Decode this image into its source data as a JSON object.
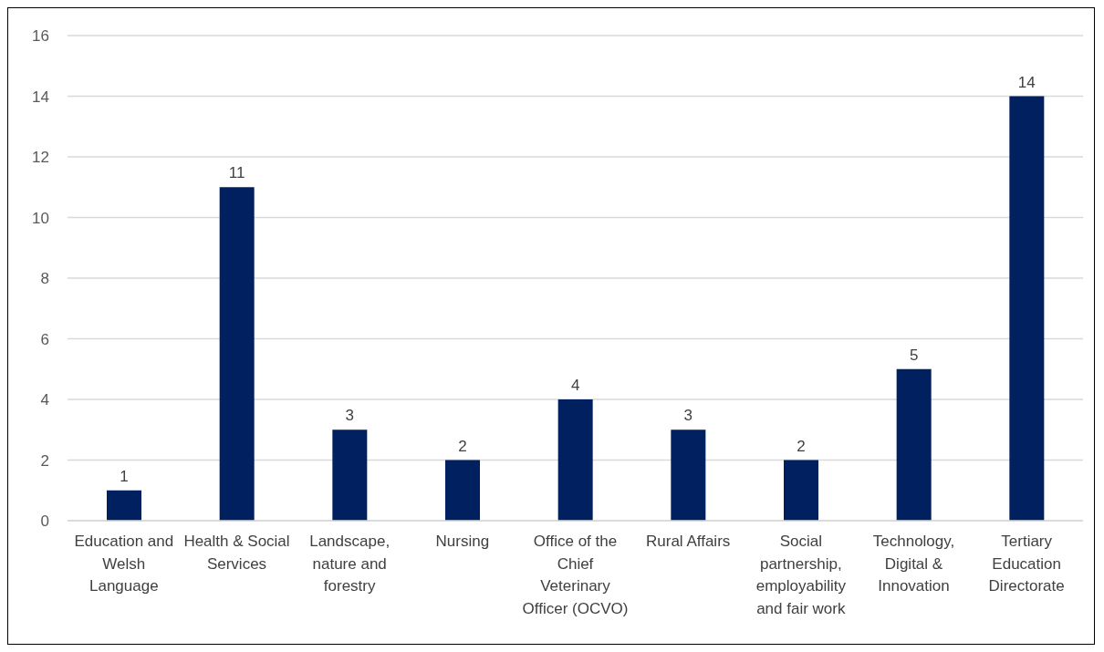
{
  "chart_data": {
    "type": "bar",
    "categories": [
      "Education and Welsh Language",
      "Health & Social Services",
      "Landscape, nature and forestry",
      "Nursing",
      "Office of the Chief Veterinary Officer (OCVO)",
      "Rural Affairs",
      "Social partnership, employability and fair work",
      "Technology, Digital & Innovation",
      "Tertiary Education Directorate"
    ],
    "values": [
      1,
      11,
      3,
      2,
      4,
      3,
      2,
      5,
      14
    ],
    "color": "#002060",
    "ylim": [
      0,
      16
    ],
    "yticks": [
      0,
      2,
      4,
      6,
      8,
      10,
      12,
      14,
      16
    ],
    "grid": "y",
    "data_labels": true,
    "legend": false
  }
}
